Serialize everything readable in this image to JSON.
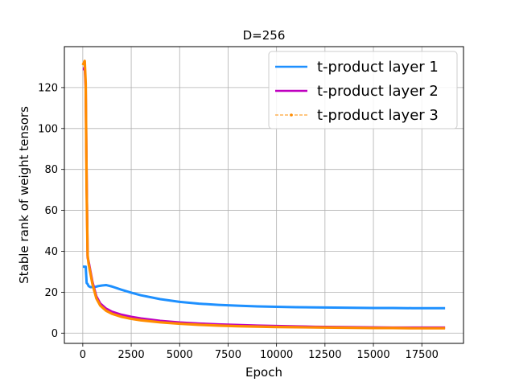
{
  "chart_data": {
    "type": "line",
    "title": "D=256",
    "xlabel": "Epoch",
    "ylabel": "Stable rank of weight tensors",
    "xlim": [
      -950,
      19650
    ],
    "ylim": [
      -5,
      140
    ],
    "xticks": [
      0,
      2500,
      5000,
      7500,
      10000,
      12500,
      15000,
      17500
    ],
    "yticks": [
      0,
      20,
      40,
      60,
      80,
      100,
      120
    ],
    "grid": true,
    "legend_position": "top-right",
    "series": [
      {
        "name": "t-product layer 1",
        "color": "#1e90ff",
        "style": "solid",
        "x": [
          0,
          100,
          150,
          200,
          250,
          300,
          400,
          600,
          800,
          1000,
          1200,
          1500,
          2000,
          2500,
          3000,
          4000,
          5000,
          6000,
          7000,
          8000,
          9000,
          10000,
          11000,
          12000,
          13000,
          14000,
          15000,
          16000,
          17000,
          18000,
          18700
        ],
        "y": [
          32.5,
          32.5,
          32.5,
          24.5,
          24,
          23,
          22.5,
          22.5,
          23,
          23.3,
          23.5,
          22.8,
          21.2,
          19.8,
          18.5,
          16.6,
          15.3,
          14.4,
          13.8,
          13.4,
          13.1,
          12.9,
          12.7,
          12.6,
          12.5,
          12.4,
          12.3,
          12.3,
          12.2,
          12.2,
          12.2
        ]
      },
      {
        "name": "t-product layer 2",
        "color": "#bf00bf",
        "style": "solid",
        "x": [
          0,
          50,
          100,
          150,
          200,
          250,
          300,
          400,
          500,
          700,
          900,
          1200,
          1500,
          2000,
          2500,
          3000,
          4000,
          5000,
          6000,
          7000,
          8000,
          9000,
          10000,
          11000,
          12000,
          13000,
          14000,
          15000,
          16000,
          17000,
          18000,
          18700
        ],
        "y": [
          129,
          129,
          130,
          120,
          75,
          37,
          35,
          30,
          25,
          18,
          14.5,
          12,
          10.5,
          9,
          8,
          7.2,
          6,
          5.2,
          4.7,
          4.3,
          4,
          3.7,
          3.5,
          3.3,
          3.1,
          3,
          2.9,
          2.8,
          2.7,
          2.7,
          2.7,
          2.7
        ]
      },
      {
        "name": "t-product layer 3",
        "color": "#ff8c00",
        "style": "dashed-marker",
        "x": [
          0,
          50,
          100,
          150,
          200,
          250,
          300,
          400,
          500,
          700,
          900,
          1200,
          1500,
          2000,
          2500,
          3000,
          4000,
          5000,
          6000,
          7000,
          8000,
          9000,
          10000,
          11000,
          12000,
          13000,
          14000,
          15000,
          16000,
          17000,
          18000,
          18700
        ],
        "y": [
          131,
          132,
          133,
          122,
          70,
          38,
          34,
          29,
          24,
          17,
          13.5,
          11,
          9.5,
          8,
          7,
          6.3,
          5.3,
          4.6,
          4.1,
          3.7,
          3.4,
          3.2,
          3,
          2.9,
          2.8,
          2.7,
          2.6,
          2.5,
          2.5,
          2.4,
          2.4,
          2.4
        ]
      }
    ]
  }
}
